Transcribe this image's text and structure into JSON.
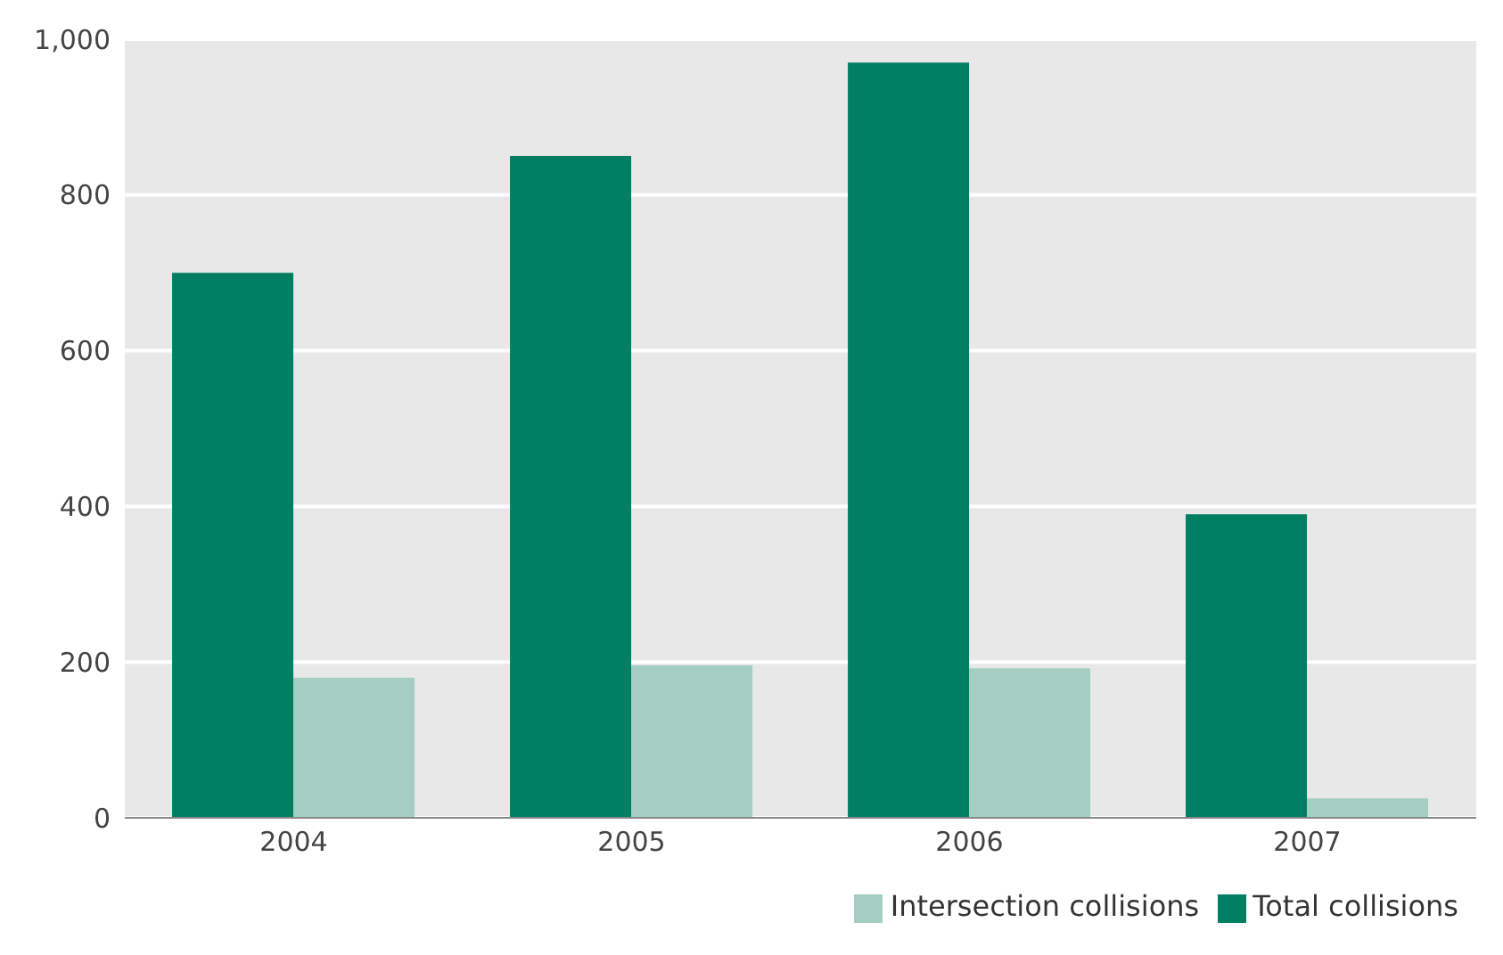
{
  "chart_data": {
    "type": "bar",
    "categories": [
      "2004",
      "2005",
      "2006",
      "2007"
    ],
    "series": [
      {
        "name": "Total collisions",
        "color": "#007f62",
        "values": [
          700,
          850,
          970,
          390
        ]
      },
      {
        "name": "Intersection collisions",
        "color": "#a3cec1",
        "values": [
          180,
          196,
          192,
          25
        ]
      }
    ],
    "ylim": [
      0,
      1000
    ],
    "yticks": [
      0,
      200,
      400,
      600,
      800,
      {
        "value": 1000,
        "label": "1,000"
      }
    ],
    "grid": "y",
    "legend": "bottom right"
  }
}
